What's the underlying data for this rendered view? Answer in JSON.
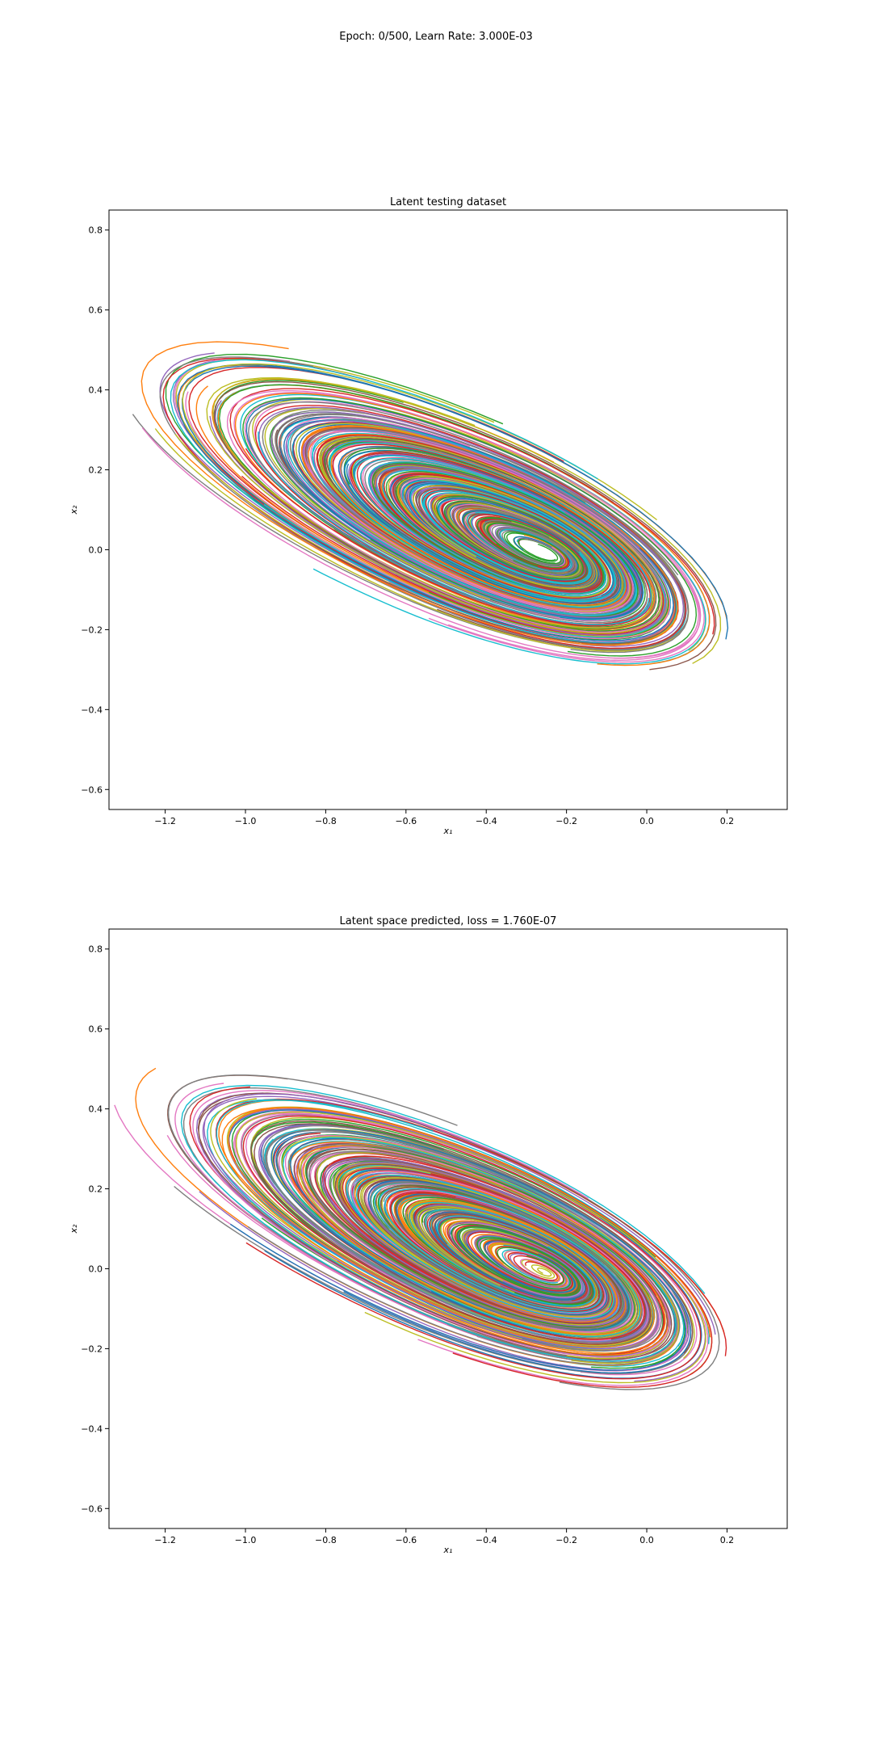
{
  "figure": {
    "suptitle": "Epoch: 0/500, Learn Rate: 3.000E-03"
  },
  "palette": [
    "#1f77b4",
    "#ff7f0e",
    "#2ca02c",
    "#d62728",
    "#9467bd",
    "#8c564b",
    "#e377c2",
    "#7f7f7f",
    "#bcbd22",
    "#17becf"
  ],
  "chart_data": [
    {
      "type": "line",
      "title": "Latent testing dataset",
      "xlabel": "x₁",
      "ylabel": "x₂",
      "xlim": [
        -1.34,
        0.35
      ],
      "ylim": [
        -0.65,
        0.85
      ],
      "xticks": [
        -1.2,
        -1.0,
        -0.8,
        -0.6,
        -0.4,
        -0.2,
        0.0,
        0.2
      ],
      "xtick_labels": [
        "−1.2",
        "−1.0",
        "−0.8",
        "−0.6",
        "−0.4",
        "−0.2",
        "0.0",
        "0.2"
      ],
      "yticks": [
        -0.6,
        -0.4,
        -0.2,
        0.0,
        0.2,
        0.4,
        0.6,
        0.8
      ],
      "ytick_labels": [
        "−0.6",
        "−0.4",
        "−0.2",
        "0.0",
        "0.2",
        "0.4",
        "0.6",
        "0.8"
      ],
      "spiral": {
        "center": [
          -0.25,
          -0.01
        ],
        "outer_start": [
          0.27,
          -0.14
        ],
        "outer_max_x": 0.27,
        "outer_min_x": -1.25,
        "outer_max_y": 0.52,
        "outer_min_y": -0.33,
        "num_trajectories": 120
      },
      "series": [
        {
          "name": "trajectories",
          "values": "spiral trajectories converging toward (-0.25, -0.01)"
        }
      ]
    },
    {
      "type": "line",
      "title": "Latent space predicted, loss = 1.760E-07",
      "xlabel": "x₁",
      "ylabel": "x₂",
      "xlim": [
        -1.34,
        0.35
      ],
      "ylim": [
        -0.65,
        0.85
      ],
      "xticks": [
        -1.2,
        -1.0,
        -0.8,
        -0.6,
        -0.4,
        -0.2,
        0.0,
        0.2
      ],
      "xtick_labels": [
        "−1.2",
        "−1.0",
        "−0.8",
        "−0.6",
        "−0.4",
        "−0.2",
        "0.0",
        "0.2"
      ],
      "yticks": [
        -0.6,
        -0.4,
        -0.2,
        0.0,
        0.2,
        0.4,
        0.6,
        0.8
      ],
      "ytick_labels": [
        "−0.6",
        "−0.4",
        "−0.2",
        "0.0",
        "0.2",
        "0.4",
        "0.6",
        "0.8"
      ],
      "spiral": {
        "center": [
          -0.25,
          -0.01
        ],
        "outer_start": [
          0.27,
          -0.14
        ],
        "outer_max_x": 0.27,
        "outer_min_x": -1.25,
        "outer_max_y": 0.52,
        "outer_min_y": -0.33,
        "num_trajectories": 120
      },
      "series": [
        {
          "name": "trajectories",
          "values": "spiral trajectories converging toward (-0.25, -0.01)"
        }
      ]
    }
  ]
}
